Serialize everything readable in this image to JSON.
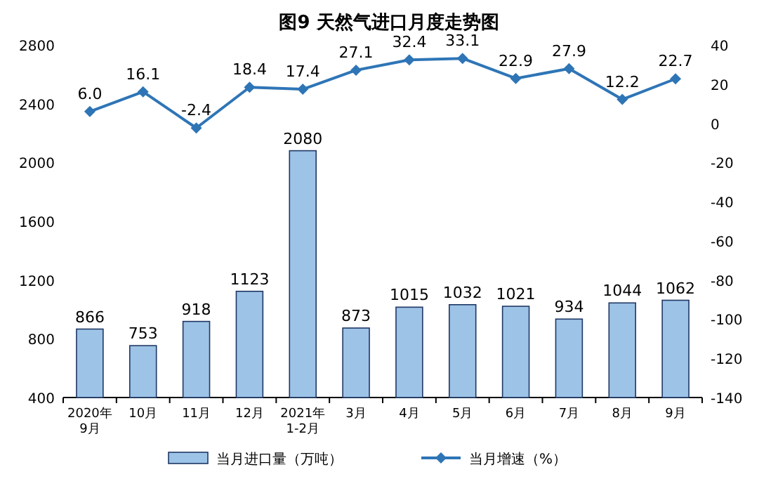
{
  "chart_data": {
    "type": "bar",
    "title": "图9  天然气进口月度走势图",
    "categories": [
      "2020年\n9月",
      "10月",
      "11月",
      "12月",
      "2021年\n1-2月",
      "3月",
      "4月",
      "5月",
      "6月",
      "7月",
      "8月",
      "9月"
    ],
    "series": [
      {
        "name": "当月进口量（万吨）",
        "color": "#9dc3e6",
        "values": [
          866,
          753,
          918,
          1123,
          2080,
          873,
          1015,
          1032,
          1021,
          934,
          1044,
          1062
        ]
      },
      {
        "name": "当月增速（%）",
        "type": "line",
        "axis": "y2",
        "marker": "diamond",
        "color": "#2e75b6",
        "values": [
          6.0,
          16.1,
          -2.4,
          18.4,
          17.4,
          27.1,
          32.4,
          33.1,
          22.9,
          27.9,
          12.2,
          22.7
        ],
        "value_labels": [
          "6.0",
          "16.1",
          "-2.4",
          "18.4",
          "17.4",
          "27.1",
          "32.4",
          "33.1",
          "22.9",
          "27.9",
          "12.2",
          "22.7"
        ]
      }
    ],
    "ylim": [
      400,
      2800
    ],
    "yticks": [
      400,
      800,
      1200,
      1600,
      2000,
      2400,
      2800
    ],
    "y2lim": [
      -140,
      40
    ],
    "y2ticks": [
      -140,
      -120,
      -100,
      -80,
      -60,
      -40,
      -20,
      0,
      20,
      40
    ],
    "legend": "bottom",
    "data_labels": true
  }
}
